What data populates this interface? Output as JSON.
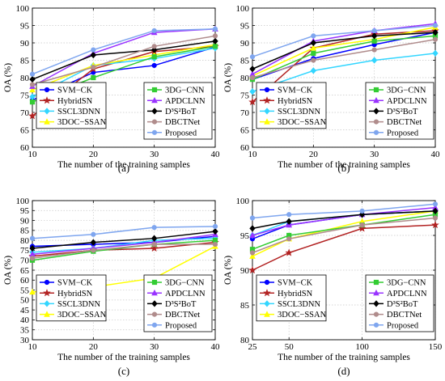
{
  "chart_data": [
    {
      "type": "line",
      "caption": "(a)",
      "xlabel": "The number of the training samples",
      "ylabel": "OA (%)",
      "x": [
        10,
        20,
        30,
        40
      ],
      "xticks": [
        "10",
        "20",
        "30",
        "40"
      ],
      "xlim": [
        10,
        40
      ],
      "ylim": [
        60,
        100
      ],
      "yticks": [
        "60",
        "65",
        "70",
        "75",
        "80",
        "85",
        "90",
        "95",
        "100"
      ],
      "grid": true,
      "series": [
        {
          "name": "SVM−CK",
          "values": [
            73.5,
            81.5,
            83.5,
            88.8
          ]
        },
        {
          "name": "HybridSN",
          "values": [
            69.0,
            82.5,
            87.5,
            89.0
          ]
        },
        {
          "name": "SSCL3DNN",
          "values": [
            74.5,
            83.5,
            85.5,
            88.5
          ]
        },
        {
          "name": "3DOC−SSAN",
          "values": [
            76.5,
            83.5,
            86.5,
            89.5
          ]
        },
        {
          "name": "3DG−CNN",
          "values": [
            73.0,
            80.0,
            86.0,
            89.0
          ]
        },
        {
          "name": "APDCLNN",
          "values": [
            77.5,
            87.0,
            93.0,
            94.0
          ]
        },
        {
          "name": "D³S²BoT",
          "values": [
            79.5,
            86.5,
            88.0,
            90.5
          ]
        },
        {
          "name": "DBCTNet",
          "values": [
            78.0,
            83.0,
            89.0,
            92.0
          ]
        },
        {
          "name": "Proposed",
          "values": [
            81.0,
            88.0,
            93.5,
            94.0
          ]
        }
      ]
    },
    {
      "type": "line",
      "caption": "(b)",
      "xlabel": "The number of the training samples",
      "ylabel": "OA (%)",
      "x": [
        10,
        20,
        30,
        40
      ],
      "xticks": [
        "10",
        "20",
        "30",
        "40"
      ],
      "xlim": [
        10,
        40
      ],
      "ylim": [
        60,
        100
      ],
      "yticks": [
        "60",
        "65",
        "70",
        "75",
        "80",
        "85",
        "90",
        "95",
        "100"
      ],
      "grid": true,
      "series": [
        {
          "name": "SVM−CK",
          "values": [
            79.5,
            85.5,
            89.5,
            93.0
          ]
        },
        {
          "name": "HybridSN",
          "values": [
            73.0,
            88.5,
            92.5,
            93.5
          ]
        },
        {
          "name": "SSCL3DNN",
          "values": [
            76.0,
            82.0,
            85.0,
            87.0
          ]
        },
        {
          "name": "3DOC−SSAN",
          "values": [
            80.5,
            88.5,
            91.0,
            94.5
          ]
        },
        {
          "name": "3DG−CNN",
          "values": [
            79.5,
            87.0,
            90.5,
            92.0
          ]
        },
        {
          "name": "APDCLNN",
          "values": [
            81.0,
            90.5,
            93.5,
            95.5
          ]
        },
        {
          "name": "D³S²BoT",
          "values": [
            82.5,
            90.0,
            92.0,
            93.0
          ]
        },
        {
          "name": "DBCTNet",
          "values": [
            80.0,
            85.0,
            88.0,
            91.0
          ]
        },
        {
          "name": "Proposed",
          "values": [
            86.0,
            92.0,
            93.5,
            95.0
          ]
        }
      ]
    },
    {
      "type": "line",
      "caption": "(c)",
      "xlabel": "The number of the training samples",
      "ylabel": "OA (%)",
      "x": [
        10,
        20,
        30,
        40
      ],
      "xticks": [
        "10",
        "20",
        "30",
        "40"
      ],
      "xlim": [
        10,
        40
      ],
      "ylim": [
        30,
        100
      ],
      "yticks": [
        "30",
        "35",
        "40",
        "45",
        "50",
        "55",
        "60",
        "65",
        "70",
        "75",
        "80",
        "85",
        "90",
        "95",
        "100"
      ],
      "grid": true,
      "series": [
        {
          "name": "SVM−CK",
          "values": [
            77.0,
            78.0,
            79.0,
            82.0
          ]
        },
        {
          "name": "HybridSN",
          "values": [
            72.0,
            75.0,
            76.0,
            79.0
          ]
        },
        {
          "name": "SSCL3DNN",
          "values": [
            74.0,
            76.0,
            80.0,
            81.0
          ]
        },
        {
          "name": "3DOC−SSAN",
          "values": [
            54.0,
            56.5,
            61.0,
            77.0
          ]
        },
        {
          "name": "3DG−CNN",
          "values": [
            70.0,
            74.5,
            78.0,
            80.0
          ]
        },
        {
          "name": "APDCLNN",
          "values": [
            73.0,
            76.0,
            79.0,
            83.0
          ]
        },
        {
          "name": "D³S²BoT",
          "values": [
            76.0,
            79.0,
            81.0,
            84.5
          ]
        },
        {
          "name": "DBCTNet",
          "values": [
            71.0,
            75.0,
            78.0,
            78.0
          ]
        },
        {
          "name": "Proposed",
          "values": [
            81.0,
            83.0,
            86.5,
            87.0
          ]
        }
      ]
    },
    {
      "type": "line",
      "caption": "(d)",
      "xlabel": "The number of the training samples",
      "ylabel": "OA (%)",
      "x": [
        25,
        50,
        100,
        150
      ],
      "xticks": [
        "25",
        "50",
        "100",
        "150"
      ],
      "xlim": [
        25,
        150
      ],
      "ylim": [
        80,
        100
      ],
      "yticks": [
        "80",
        "85",
        "90",
        "95",
        "100"
      ],
      "grid": true,
      "series": [
        {
          "name": "SVM−CK",
          "values": [
            94.5,
            96.5,
            98.0,
            98.5
          ]
        },
        {
          "name": "HybridSN",
          "values": [
            90.0,
            92.5,
            96.0,
            96.5
          ]
        },
        {
          "name": "SSCL3DNN",
          "values": [
            95.0,
            97.0,
            98.0,
            98.5
          ]
        },
        {
          "name": "3DOC−SSAN",
          "values": [
            92.0,
            94.5,
            97.0,
            98.5
          ]
        },
        {
          "name": "3DG−CNN",
          "values": [
            93.0,
            95.0,
            96.5,
            98.0
          ]
        },
        {
          "name": "APDCLNN",
          "values": [
            95.0,
            96.5,
            98.0,
            99.0
          ]
        },
        {
          "name": "D³S²BoT",
          "values": [
            96.0,
            97.0,
            98.0,
            98.5
          ]
        },
        {
          "name": "DBCTNet",
          "values": [
            92.5,
            94.5,
            96.5,
            97.5
          ]
        },
        {
          "name": "Proposed",
          "values": [
            97.5,
            98.0,
            98.5,
            99.5
          ]
        }
      ]
    }
  ],
  "series_styles": [
    {
      "name": "SVM−CK",
      "color": "#0000ff",
      "marker": "circle"
    },
    {
      "name": "HybridSN",
      "color": "#b22222",
      "marker": "star"
    },
    {
      "name": "SSCL3DNN",
      "color": "#33d6ff",
      "marker": "diamond"
    },
    {
      "name": "3DOC−SSAN",
      "color": "#ffff00",
      "marker": "triangle"
    },
    {
      "name": "3DG−CNN",
      "color": "#33cc33",
      "marker": "square"
    },
    {
      "name": "APDCLNN",
      "color": "#9933ff",
      "marker": "triangle"
    },
    {
      "name": "D³S²BoT",
      "color": "#000000",
      "marker": "diamond"
    },
    {
      "name": "DBCTNet",
      "color": "#b08c8c",
      "marker": "circle"
    },
    {
      "name": "Proposed",
      "color": "#7fa6ef",
      "marker": "circle"
    }
  ]
}
